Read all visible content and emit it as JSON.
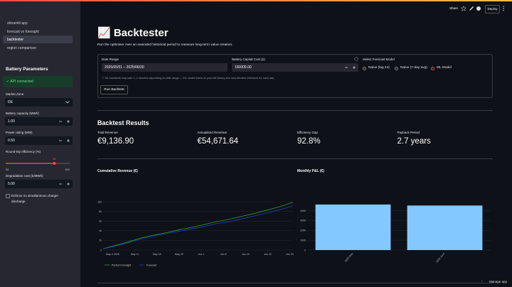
{
  "header": {
    "share": "Share",
    "deploy": "Deploy"
  },
  "sidebar": {
    "nav": [
      "streamlit app",
      "forecast vs foresight",
      "backtester",
      "region comparison"
    ],
    "section_title": "Battery Parameters",
    "status": "✓ API connected",
    "market_zone": {
      "label": "Market Zone",
      "value": "DE"
    },
    "capacity": {
      "label": "Battery capacity (MWh)",
      "value": "1.00"
    },
    "power": {
      "label": "Power rating (MW)",
      "value": "0.50"
    },
    "efficiency": {
      "label": "Round-trip efficiency (%)",
      "value": 88,
      "min": 50,
      "max": 100
    },
    "degradation": {
      "label": "Degradation cost (£/MWh)",
      "value": "5.00"
    },
    "checkbox": "Enforce no simultaneous charge/ discharge"
  },
  "main": {
    "title": "📈 Backtester",
    "subtitle": "Run the optimiser over an extended historical period to measure long-term value creation.",
    "form": {
      "date_range": {
        "label": "Date Range",
        "value": "2025/05/01 – 2025/06/30"
      },
      "capital_cost": {
        "label": "Battery Capital Cost (£)",
        "value": "150000.00"
      },
      "model": {
        "label": "Select Forecast Model",
        "options": [
          "Naive (lag 24)",
          "Naive (7-day avg)",
          "ML Model"
        ]
      },
      "info": "ⓘ ML backtests may take 1–2 minutes depending on date range — the model trains on your full history and runs iterative inference for each day.",
      "button": "Run Backtest"
    },
    "results_title": "Backtest Results",
    "metrics": [
      {
        "label": "Total Revenue",
        "value": "€9,136.90"
      },
      {
        "label": "Annualised Revenue",
        "value": "€54,671.64"
      },
      {
        "label": "Efficiency Gap",
        "value": "92.8%"
      },
      {
        "label": "Payback Period",
        "value": "2.7 years"
      }
    ],
    "charts": [
      {
        "type": "line",
        "title": "Cumulative Revenue (€)",
        "x": [
          "2025-05-01",
          "2025-05-05",
          "2025-05-09",
          "2025-05-13",
          "2025-05-17",
          "2025-05-21",
          "2025-05-25",
          "2025-05-29",
          "2025-06-02",
          "2025-06-06",
          "2025-06-10",
          "2025-06-14",
          "2025-06-18",
          "2025-06-22",
          "2025-06-26",
          "2025-06-30"
        ],
        "series": [
          {
            "name": "Perfect Foresight",
            "color": "#2ca02c",
            "values": [
              300,
              1000,
              1700,
              2500,
              3100,
              3600,
              4200,
              4700,
              5300,
              5900,
              6400,
              7000,
              7600,
              8300,
              9000,
              9900
            ]
          },
          {
            "name": "Forecast",
            "color": "#1f3fd0",
            "values": [
              250,
              850,
              1500,
              2300,
              2900,
              3400,
              3900,
              4400,
              4900,
              5500,
              5900,
              6500,
              7100,
              7700,
              8400,
              9137
            ]
          }
        ],
        "xlim": [
          "2025-05-01",
          "2025-06-30"
        ],
        "xticks": [
          {
            "value": "2025-05-04",
            "label": "May 4 2025"
          },
          {
            "value": "2025-05-11",
            "label": "May 11"
          },
          {
            "value": "2025-05-18",
            "label": "May 18"
          },
          {
            "value": "2025-05-25",
            "label": "May 25"
          },
          {
            "value": "2025-06-01",
            "label": "Jun 1"
          },
          {
            "value": "2025-06-08",
            "label": "Jun 8"
          },
          {
            "value": "2025-06-15",
            "label": "Jun 15"
          },
          {
            "value": "2025-06-22",
            "label": "Jun 22"
          },
          {
            "value": "2025-06-29",
            "label": "Jun 29"
          }
        ],
        "ylim": [
          0,
          10000
        ],
        "yticks": [
          0,
          {
            "value": 2000,
            "label": "2k"
          },
          {
            "value": 4000,
            "label": "4k"
          },
          {
            "value": 6000,
            "label": "6k"
          },
          {
            "value": 8000,
            "label": "8k"
          },
          {
            "value": 10000,
            "label": "10k"
          }
        ],
        "grid": true
      },
      {
        "type": "bar",
        "title": "Monthly P&L (€)",
        "categories": [
          "2025 May",
          "2025 June"
        ],
        "values": [
          4620,
          4517
        ],
        "color": "#83c9ff",
        "ylim": [
          0,
          4900
        ],
        "yticks": [
          0,
          1000,
          2000,
          3000,
          4000
        ],
        "grid": true
      }
    ],
    "manage": "Manage app"
  }
}
